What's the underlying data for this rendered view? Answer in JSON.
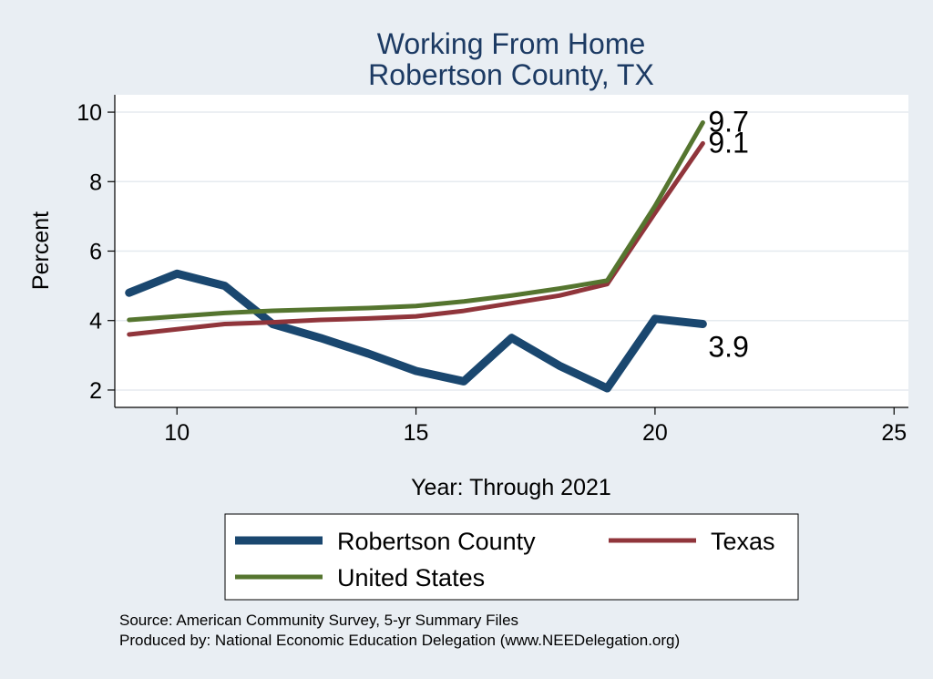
{
  "chart_data": {
    "type": "line",
    "title": [
      "Working From Home",
      "Robertson County, TX"
    ],
    "xlabel": "Year: Through 2021",
    "ylabel": "Percent",
    "xlim": [
      8.7,
      25.3
    ],
    "ylim": [
      1.5,
      10.5
    ],
    "xticks": [
      10,
      15,
      20,
      25
    ],
    "yticks": [
      2,
      4,
      6,
      8,
      10
    ],
    "grid": true,
    "legend_position": "bottom",
    "x": [
      9,
      10,
      11,
      12,
      13,
      14,
      15,
      16,
      17,
      18,
      19,
      20,
      21
    ],
    "series": [
      {
        "name": "Robertson County",
        "color": "#1a476f",
        "values": [
          4.8,
          5.35,
          5.0,
          3.9,
          3.5,
          3.05,
          2.55,
          2.25,
          3.5,
          2.7,
          2.05,
          4.05,
          3.9
        ],
        "end_label": "3.9"
      },
      {
        "name": "Texas",
        "color": "#90353b",
        "values": [
          3.6,
          3.75,
          3.9,
          3.95,
          4.02,
          4.06,
          4.12,
          4.28,
          4.5,
          4.72,
          5.05,
          7.1,
          9.1
        ],
        "end_label": "9.1"
      },
      {
        "name": "United States",
        "color": "#55752f",
        "values": [
          4.02,
          4.12,
          4.22,
          4.28,
          4.32,
          4.36,
          4.42,
          4.55,
          4.72,
          4.92,
          5.15,
          7.3,
          9.7
        ],
        "end_label": "9.7"
      }
    ]
  },
  "footnotes": [
    "Source: American Community Survey, 5-yr Summary Files",
    "Produced by: National Economic Education Delegation (www.NEEDelegation.org)"
  ]
}
